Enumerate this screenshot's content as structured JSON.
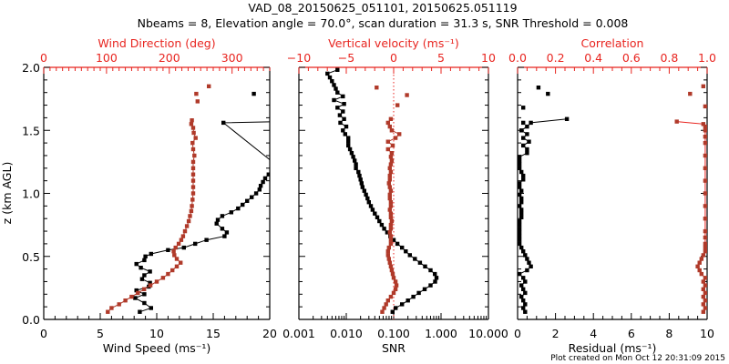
{
  "title_line1": "VAD_08_20150625_051101, 20150625.051119",
  "title_line2": "Nbeams = 8, Elevation angle = 70.0°, scan duration = 31.3 s, SNR Threshold = 0.008",
  "footer": "Plot created on Mon Oct 12 20:31:09 2015",
  "colors": {
    "black_series": "#000000",
    "red_series": "#b03a2a",
    "red_axis": "#e8241f"
  },
  "chart_data": [
    {
      "type": "line",
      "panel": "wind",
      "ylabel": "z (km AGL)",
      "ylim": [
        0.0,
        2.0
      ],
      "yticks": [
        "0.0",
        "0.5",
        "1.0",
        "1.5",
        "2.0"
      ],
      "xlabel": "Wind Speed (ms⁻¹)",
      "xlim": [
        0,
        20
      ],
      "xticks": [
        "0",
        "5",
        "10",
        "15",
        "20"
      ],
      "top_xlabel": "Wind Direction (deg)",
      "top_xlim": [
        0,
        360
      ],
      "top_xticks": [
        "0",
        "100",
        "200",
        "300"
      ],
      "grid": false,
      "series": [
        {
          "name": "Wind Speed",
          "axis": "bottom",
          "color": "black",
          "z": [
            0.06,
            0.09,
            0.13,
            0.17,
            0.2,
            0.23,
            0.26,
            0.29,
            0.32,
            0.35,
            0.38,
            0.41,
            0.44,
            0.47,
            0.5,
            0.52,
            0.55,
            0.57,
            0.6,
            0.63,
            0.66,
            0.69,
            0.72,
            0.76,
            0.79,
            0.82,
            0.85,
            0.88,
            0.91,
            0.94,
            0.97,
            1.0,
            1.03,
            1.06,
            1.09,
            1.12,
            1.15,
            1.18,
            1.21,
            1.56,
            1.57
          ],
          "values": [
            8.5,
            9.5,
            8.9,
            8.1,
            8.9,
            8.2,
            9.3,
            9.4,
            8.7,
            8.9,
            9.4,
            8.6,
            8.2,
            8.9,
            9.0,
            9.5,
            11.0,
            12.4,
            13.4,
            14.4,
            16.0,
            16.2,
            15.8,
            15.3,
            15.4,
            15.8,
            16.6,
            17.2,
            17.6,
            18.0,
            18.4,
            18.8,
            19.1,
            19.2,
            19.4,
            19.6,
            19.9,
            20.3,
            20.8,
            15.9,
            21.0
          ]
        },
        {
          "name": "Wind Speed (isolated)",
          "axis": "bottom",
          "color": "black",
          "markers_only": true,
          "z": [
            1.79
          ],
          "values": [
            18.6
          ]
        },
        {
          "name": "Wind Direction",
          "axis": "top",
          "color": "red",
          "z": [
            0.06,
            0.09,
            0.12,
            0.15,
            0.18,
            0.21,
            0.24,
            0.27,
            0.3,
            0.33,
            0.36,
            0.39,
            0.42,
            0.45,
            0.48,
            0.51,
            0.54,
            0.57,
            0.6,
            0.63,
            0.66,
            0.7,
            0.74,
            0.78,
            0.82,
            0.86,
            0.9,
            0.95,
            1.0,
            1.05,
            1.1,
            1.15,
            1.2,
            1.25,
            1.3,
            1.35,
            1.4,
            1.44,
            1.48,
            1.52,
            1.55,
            1.58
          ],
          "values": [
            102,
            108,
            120,
            130,
            140,
            150,
            160,
            170,
            180,
            190,
            198,
            205,
            212,
            218,
            212,
            208,
            207,
            210,
            215,
            219,
            222,
            225,
            228,
            231,
            233,
            235,
            236,
            237,
            238,
            238,
            238,
            238,
            238,
            238,
            240,
            238,
            237,
            242,
            239,
            238,
            235,
            236
          ]
        },
        {
          "name": "Wind Direction (isolated)",
          "axis": "top",
          "color": "red",
          "markers_only": true,
          "z": [
            1.73,
            1.79,
            1.85
          ],
          "values": [
            245,
            243,
            263
          ]
        }
      ]
    },
    {
      "type": "line",
      "panel": "snr",
      "xlabel": "SNR",
      "xscale": "log",
      "xlim": [
        0.001,
        10.0
      ],
      "xticks": [
        "0.001",
        "0.010",
        "0.100",
        "1.000",
        "10.000"
      ],
      "top_xlabel": "Vertical velocity (ms⁻¹)",
      "top_xlim": [
        -10,
        10
      ],
      "top_xticks": [
        "−10",
        "−5",
        "0",
        "5",
        "10"
      ],
      "reference_line": {
        "axis": "top",
        "value": 0,
        "style": "dotted",
        "color": "red"
      },
      "grid": false,
      "series": [
        {
          "name": "SNR",
          "axis": "bottom",
          "color": "black",
          "z": [
            0.06,
            0.09,
            0.12,
            0.15,
            0.18,
            0.21,
            0.24,
            0.27,
            0.3,
            0.33,
            0.36,
            0.39,
            0.42,
            0.45,
            0.48,
            0.51,
            0.54,
            0.57,
            0.6,
            0.63,
            0.66,
            0.69,
            0.72,
            0.75,
            0.78,
            0.81,
            0.84,
            0.87,
            0.9,
            0.93,
            0.96,
            0.99,
            1.02,
            1.05,
            1.08,
            1.11,
            1.14,
            1.17,
            1.2,
            1.23,
            1.26,
            1.29,
            1.32,
            1.35,
            1.38,
            1.41,
            1.44,
            1.47,
            1.5,
            1.53,
            1.56,
            1.59,
            1.62,
            1.65,
            1.68,
            1.71,
            1.74,
            1.77,
            1.8,
            1.83,
            1.86,
            1.89,
            1.92,
            1.95,
            1.98
          ],
          "values": [
            0.095,
            0.11,
            0.15,
            0.2,
            0.26,
            0.34,
            0.45,
            0.6,
            0.75,
            0.8,
            0.74,
            0.6,
            0.46,
            0.36,
            0.28,
            0.22,
            0.18,
            0.15,
            0.12,
            0.1,
            0.085,
            0.073,
            0.063,
            0.056,
            0.05,
            0.045,
            0.04,
            0.036,
            0.033,
            0.03,
            0.028,
            0.026,
            0.024,
            0.022,
            0.021,
            0.02,
            0.019,
            0.018,
            0.016,
            0.016,
            0.015,
            0.014,
            0.013,
            0.012,
            0.011,
            0.011,
            0.011,
            0.0095,
            0.0085,
            0.01,
            0.0075,
            0.009,
            0.0073,
            0.0085,
            0.0065,
            0.009,
            0.0055,
            0.0085,
            0.0065,
            0.006,
            0.0055,
            0.005,
            0.0045,
            0.004,
            0.0065
          ]
        },
        {
          "name": "Vertical velocity",
          "axis": "top",
          "color": "red",
          "z": [
            0.06,
            0.09,
            0.12,
            0.15,
            0.18,
            0.21,
            0.24,
            0.27,
            0.3,
            0.33,
            0.36,
            0.39,
            0.42,
            0.45,
            0.48,
            0.51,
            0.54,
            0.57,
            0.6,
            0.63,
            0.66,
            0.69,
            0.72,
            0.75,
            0.78,
            0.81,
            0.84,
            0.87,
            0.9,
            0.93,
            0.96,
            0.99,
            1.02,
            1.05,
            1.08,
            1.11,
            1.14,
            1.17,
            1.2,
            1.23,
            1.26,
            1.29,
            1.32,
            1.35,
            1.38,
            1.41,
            1.44,
            1.47,
            1.5,
            1.53,
            1.56,
            1.59
          ],
          "values": [
            -1.2,
            -1.0,
            -0.8,
            -0.6,
            -0.3,
            0.0,
            0.2,
            0.3,
            0.2,
            0.0,
            -0.1,
            -0.2,
            -0.3,
            -0.4,
            -0.5,
            -0.6,
            -0.6,
            -0.5,
            -0.3,
            -0.3,
            -0.3,
            -0.4,
            -0.3,
            -0.3,
            -0.2,
            -0.3,
            -0.3,
            -0.4,
            -0.3,
            -0.3,
            -0.4,
            -0.4,
            -0.3,
            -0.4,
            -0.5,
            -0.4,
            -0.4,
            -0.3,
            -0.4,
            -0.3,
            -0.2,
            -0.3,
            -0.2,
            -0.6,
            -0.1,
            -0.6,
            0.2,
            0.6,
            -0.2,
            -0.4,
            -0.6,
            -0.3
          ]
        },
        {
          "name": "Vertical velocity (isolated)",
          "axis": "top",
          "color": "red",
          "markers_only": true,
          "z": [
            1.7,
            1.78,
            1.84
          ],
          "values": [
            0.4,
            1.4,
            -1.8
          ]
        }
      ]
    },
    {
      "type": "line",
      "panel": "residual",
      "xlabel": "Residual (ms⁻¹)",
      "xlim": [
        0,
        10
      ],
      "xticks": [
        "0",
        "2",
        "4",
        "6",
        "8",
        "10"
      ],
      "top_xlabel": "Correlation",
      "top_xlim": [
        0.0,
        1.0
      ],
      "top_xticks": [
        "0.0",
        "0.2",
        "0.4",
        "0.6",
        "0.8",
        "1.0"
      ],
      "grid": false,
      "series": [
        {
          "name": "Residual",
          "axis": "bottom",
          "color": "black",
          "z": [
            0.06,
            0.09,
            0.12,
            0.15,
            0.18,
            0.21,
            0.24,
            0.27,
            0.3,
            0.33,
            0.36,
            0.39,
            0.42,
            0.45,
            0.48,
            0.51,
            0.54,
            0.57,
            0.6,
            0.63,
            0.66,
            0.69,
            0.72,
            0.75,
            0.78,
            0.81,
            0.84,
            0.87,
            0.9,
            0.93,
            0.96,
            0.99,
            1.02,
            1.05,
            1.08,
            1.11,
            1.14,
            1.17,
            1.2,
            1.23,
            1.26,
            1.29,
            1.32,
            1.35,
            1.38,
            1.41,
            1.44,
            1.47,
            1.5,
            1.53,
            1.56,
            1.59
          ],
          "values": [
            0.4,
            0.3,
            0.4,
            0.3,
            0.2,
            0.4,
            0.3,
            0.2,
            0.4,
            0.3,
            0.1,
            0.5,
            0.7,
            0.6,
            0.5,
            0.4,
            0.3,
            0.2,
            0.1,
            0.1,
            0.1,
            0.1,
            0.1,
            0.1,
            0.1,
            0.2,
            0.2,
            0.2,
            0.1,
            0.2,
            0.2,
            0.1,
            0.2,
            0.1,
            0.1,
            0.3,
            0.3,
            0.2,
            0.1,
            0.1,
            0.1,
            0.1,
            0.5,
            0.5,
            0.3,
            0.6,
            0.3,
            0.5,
            0.2,
            0.5,
            0.7,
            2.6
          ]
        },
        {
          "name": "Residual (top)",
          "axis": "bottom",
          "color": "black",
          "z": [
            1.56
          ],
          "values": [
            0.3
          ],
          "markers_only": true
        },
        {
          "name": "Residual (isolated)",
          "axis": "bottom",
          "color": "black",
          "markers_only": true,
          "z": [
            1.68,
            1.79,
            1.84
          ],
          "values": [
            0.3,
            1.6,
            1.1
          ]
        },
        {
          "name": "Correlation",
          "axis": "top",
          "color": "red",
          "z": [
            0.06,
            0.09,
            0.12,
            0.15,
            0.18,
            0.21,
            0.24,
            0.27,
            0.3,
            0.33,
            0.36,
            0.39,
            0.42,
            0.45,
            0.48,
            0.51,
            0.54,
            0.57,
            0.6,
            0.65,
            0.7,
            0.8,
            0.9,
            1.0,
            1.1,
            1.2,
            1.3,
            1.4,
            1.45,
            1.5,
            1.53,
            1.55,
            1.57
          ],
          "values": [
            0.98,
            0.99,
            0.98,
            0.99,
            0.98,
            0.99,
            0.98,
            0.99,
            0.98,
            0.99,
            0.97,
            0.96,
            0.95,
            0.96,
            0.97,
            0.98,
            0.99,
            0.99,
            0.99,
            0.99,
            0.99,
            0.99,
            0.99,
            0.99,
            0.99,
            0.99,
            0.99,
            0.99,
            0.99,
            0.99,
            0.99,
            0.98,
            0.84
          ]
        },
        {
          "name": "Correlation (isolated)",
          "axis": "top",
          "color": "red",
          "markers_only": true,
          "z": [
            1.69,
            1.79,
            1.85
          ],
          "values": [
            0.99,
            0.91,
            0.98
          ]
        }
      ]
    }
  ]
}
